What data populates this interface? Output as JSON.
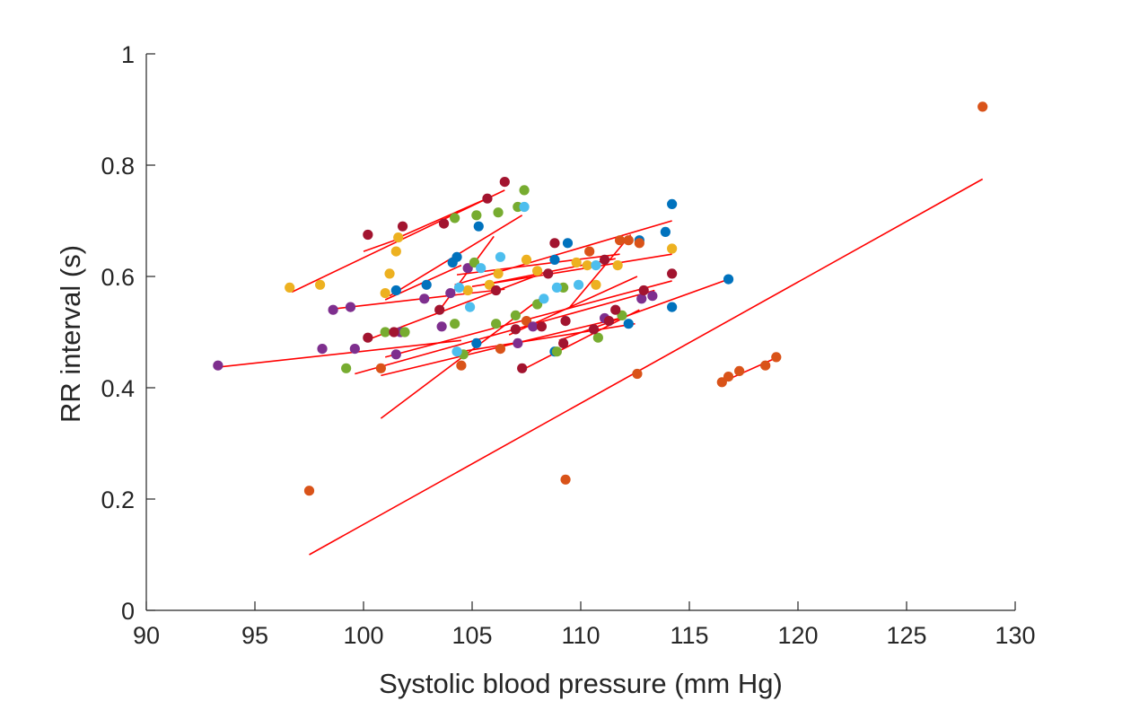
{
  "chart_data": {
    "type": "scatter",
    "title": "",
    "xlabel": "Systolic blood pressure (mm Hg)",
    "ylabel": "RR interval (s)",
    "xlim": [
      90,
      130
    ],
    "ylim": [
      0,
      1
    ],
    "xticks": [
      "90",
      "95",
      "100",
      "105",
      "110",
      "115",
      "120",
      "125",
      "130"
    ],
    "yticks": [
      "0",
      "0.2",
      "0.4",
      "0.6",
      "0.8",
      "1"
    ],
    "grid": false,
    "legend": "none",
    "colors": {
      "blue": "#0072bd",
      "orange": "#d95319",
      "yellow": "#edb120",
      "purple": "#7e2f8e",
      "green": "#77ac30",
      "cyan": "#4dbeee",
      "darkred": "#a2142f",
      "fit": "#ff0000"
    },
    "series": [
      {
        "color": "blue",
        "points": [
          [
            101.5,
            0.575
          ],
          [
            102.9,
            0.585
          ],
          [
            104.1,
            0.625
          ],
          [
            104.3,
            0.635
          ],
          [
            105.3,
            0.69
          ],
          [
            105.2,
            0.48
          ],
          [
            108.8,
            0.465
          ],
          [
            108.8,
            0.63
          ],
          [
            109.4,
            0.66
          ],
          [
            112.2,
            0.515
          ],
          [
            112.7,
            0.665
          ],
          [
            113.9,
            0.68
          ],
          [
            114.2,
            0.73
          ],
          [
            114.2,
            0.545
          ],
          [
            116.8,
            0.595
          ]
        ]
      },
      {
        "color": "orange",
        "points": [
          [
            97.5,
            0.215
          ],
          [
            100.8,
            0.435
          ],
          [
            104.5,
            0.44
          ],
          [
            106.3,
            0.47
          ],
          [
            107.5,
            0.52
          ],
          [
            109.3,
            0.235
          ],
          [
            110.4,
            0.645
          ],
          [
            111.8,
            0.665
          ],
          [
            112.2,
            0.665
          ],
          [
            112.7,
            0.66
          ],
          [
            112.6,
            0.425
          ],
          [
            116.5,
            0.41
          ],
          [
            116.8,
            0.42
          ],
          [
            117.3,
            0.43
          ],
          [
            118.5,
            0.44
          ],
          [
            119.0,
            0.455
          ],
          [
            128.5,
            0.905
          ]
        ]
      },
      {
        "color": "yellow",
        "points": [
          [
            96.6,
            0.58
          ],
          [
            98.0,
            0.585
          ],
          [
            101.0,
            0.57
          ],
          [
            101.2,
            0.605
          ],
          [
            101.5,
            0.645
          ],
          [
            101.6,
            0.67
          ],
          [
            104.8,
            0.575
          ],
          [
            105.8,
            0.585
          ],
          [
            106.2,
            0.605
          ],
          [
            107.5,
            0.63
          ],
          [
            108.0,
            0.61
          ],
          [
            109.8,
            0.625
          ],
          [
            110.3,
            0.62
          ],
          [
            110.7,
            0.585
          ],
          [
            111.7,
            0.62
          ],
          [
            114.2,
            0.65
          ]
        ]
      },
      {
        "color": "purple",
        "points": [
          [
            93.3,
            0.44
          ],
          [
            98.1,
            0.47
          ],
          [
            98.6,
            0.54
          ],
          [
            99.4,
            0.545
          ],
          [
            99.6,
            0.47
          ],
          [
            101.5,
            0.46
          ],
          [
            101.7,
            0.5
          ],
          [
            102.8,
            0.56
          ],
          [
            103.6,
            0.51
          ],
          [
            104.0,
            0.57
          ],
          [
            104.8,
            0.615
          ],
          [
            107.1,
            0.48
          ],
          [
            107.8,
            0.51
          ],
          [
            111.1,
            0.525
          ],
          [
            112.8,
            0.56
          ],
          [
            113.3,
            0.565
          ]
        ]
      },
      {
        "color": "green",
        "points": [
          [
            99.2,
            0.435
          ],
          [
            101.0,
            0.5
          ],
          [
            101.9,
            0.5
          ],
          [
            104.2,
            0.705
          ],
          [
            104.2,
            0.515
          ],
          [
            104.6,
            0.46
          ],
          [
            105.1,
            0.625
          ],
          [
            105.2,
            0.71
          ],
          [
            106.1,
            0.515
          ],
          [
            106.2,
            0.715
          ],
          [
            107.0,
            0.53
          ],
          [
            107.1,
            0.725
          ],
          [
            107.4,
            0.755
          ],
          [
            108.0,
            0.55
          ],
          [
            108.9,
            0.465
          ],
          [
            109.2,
            0.58
          ],
          [
            111.9,
            0.53
          ],
          [
            110.8,
            0.49
          ]
        ]
      },
      {
        "color": "cyan",
        "points": [
          [
            104.3,
            0.465
          ],
          [
            104.4,
            0.58
          ],
          [
            104.9,
            0.545
          ],
          [
            105.4,
            0.615
          ],
          [
            106.3,
            0.635
          ],
          [
            107.4,
            0.725
          ],
          [
            108.3,
            0.56
          ],
          [
            108.9,
            0.58
          ],
          [
            109.9,
            0.585
          ],
          [
            110.7,
            0.62
          ]
        ]
      },
      {
        "color": "darkred",
        "points": [
          [
            100.2,
            0.675
          ],
          [
            100.2,
            0.49
          ],
          [
            101.4,
            0.5
          ],
          [
            101.8,
            0.69
          ],
          [
            103.5,
            0.54
          ],
          [
            103.7,
            0.695
          ],
          [
            105.7,
            0.74
          ],
          [
            106.1,
            0.575
          ],
          [
            106.5,
            0.77
          ],
          [
            107.0,
            0.505
          ],
          [
            107.3,
            0.435
          ],
          [
            108.2,
            0.51
          ],
          [
            108.5,
            0.605
          ],
          [
            108.8,
            0.66
          ],
          [
            109.3,
            0.52
          ],
          [
            109.2,
            0.48
          ],
          [
            110.6,
            0.505
          ],
          [
            111.1,
            0.63
          ],
          [
            111.3,
            0.52
          ],
          [
            111.6,
            0.54
          ],
          [
            112.9,
            0.575
          ],
          [
            114.2,
            0.605
          ]
        ]
      }
    ],
    "fit_lines": [
      [
        [
          93.3,
          0.437
        ],
        [
          104.5,
          0.485
        ]
      ],
      [
        [
          96.7,
          0.572
        ],
        [
          106.5,
          0.755
        ]
      ],
      [
        [
          100.0,
          0.645
        ],
        [
          101.8,
          0.67
        ]
      ],
      [
        [
          101.5,
          0.668
        ],
        [
          105.8,
          0.742
        ]
      ],
      [
        [
          101.2,
          0.565
        ],
        [
          107.3,
          0.71
        ]
      ],
      [
        [
          103.6,
          0.545
        ],
        [
          106.0,
          0.672
        ]
      ],
      [
        [
          101.0,
          0.558
        ],
        [
          104.5,
          0.62
        ]
      ],
      [
        [
          98.7,
          0.542
        ],
        [
          106.5,
          0.577
        ]
      ],
      [
        [
          104.2,
          0.585
        ],
        [
          114.2,
          0.7
        ]
      ],
      [
        [
          105.0,
          0.582
        ],
        [
          114.2,
          0.64
        ]
      ],
      [
        [
          104.3,
          0.603
        ],
        [
          111.8,
          0.64
        ]
      ],
      [
        [
          105.5,
          0.585
        ],
        [
          111.6,
          0.632
        ]
      ],
      [
        [
          100.3,
          0.488
        ],
        [
          108.2,
          0.605
        ]
      ],
      [
        [
          99.6,
          0.425
        ],
        [
          113.4,
          0.575
        ]
      ],
      [
        [
          101.0,
          0.455
        ],
        [
          114.2,
          0.592
        ]
      ],
      [
        [
          100.8,
          0.422
        ],
        [
          111.8,
          0.525
        ]
      ],
      [
        [
          104.5,
          0.465
        ],
        [
          112.5,
          0.515
        ]
      ],
      [
        [
          100.8,
          0.345
        ],
        [
          108.3,
          0.565
        ]
      ],
      [
        [
          107.2,
          0.43
        ],
        [
          112.7,
          0.54
        ]
      ],
      [
        [
          109.0,
          0.485
        ],
        [
          116.8,
          0.595
        ]
      ],
      [
        [
          106.7,
          0.495
        ],
        [
          112.6,
          0.6
        ]
      ],
      [
        [
          109.5,
          0.545
        ],
        [
          112.3,
          0.675
        ]
      ],
      [
        [
          97.5,
          0.1
        ],
        [
          128.5,
          0.775
        ]
      ],
      [
        [
          116.5,
          0.41
        ],
        [
          118.9,
          0.452
        ]
      ]
    ]
  }
}
